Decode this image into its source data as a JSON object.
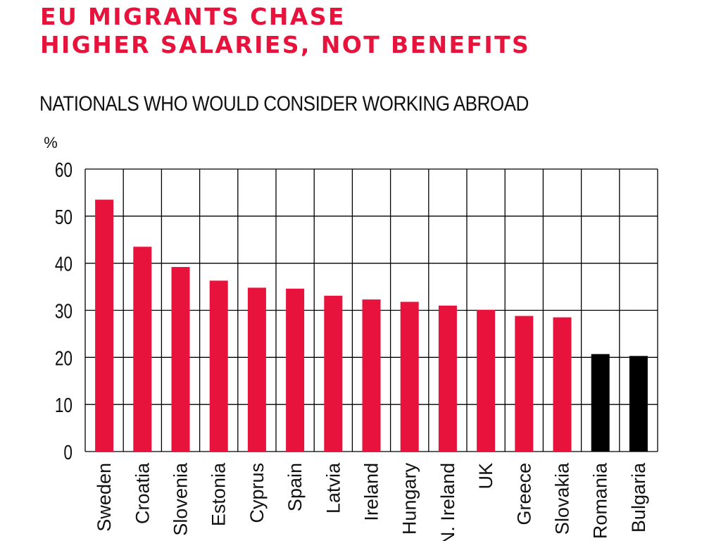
{
  "headline": {
    "line1": "EU MIGRANTS CHASE",
    "line2": "HIGHER SALARIES, NOT BENEFITS"
  },
  "colors": {
    "headline": "#e8133c",
    "bar_red": "#e8133c",
    "bar_black": "#000000"
  },
  "chart_data": {
    "type": "bar",
    "title": "NATIONALS WHO WOULD CONSIDER WORKING ABROAD",
    "ylabel": "%",
    "xlabel": "",
    "ylim": [
      0,
      60
    ],
    "yticks": [
      0,
      10,
      20,
      30,
      40,
      50,
      60
    ],
    "grid": true,
    "categories": [
      "Sweden",
      "Croatia",
      "Slovenia",
      "Estonia",
      "Cyprus",
      "Spain",
      "Latvia",
      "Ireland",
      "Hungary",
      "N. Ireland",
      "UK",
      "Greece",
      "Slovakia",
      "Romania",
      "Bulgaria"
    ],
    "values": [
      53.5,
      43.5,
      39.2,
      36.3,
      34.8,
      34.6,
      33.1,
      32.3,
      31.8,
      31.0,
      30.1,
      28.8,
      28.5,
      20.7,
      20.3
    ],
    "bar_colors": [
      "red",
      "red",
      "red",
      "red",
      "red",
      "red",
      "red",
      "red",
      "red",
      "red",
      "red",
      "red",
      "red",
      "black",
      "black"
    ]
  }
}
